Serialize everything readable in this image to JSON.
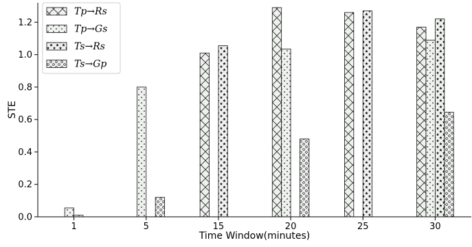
{
  "chart_data": {
    "type": "bar",
    "title": "",
    "xlabel": "Time Window(minutes)",
    "ylabel": "STE",
    "categories": [
      "1",
      "5",
      "15",
      "20",
      "25",
      "30"
    ],
    "ylim": [
      0,
      1.32
    ],
    "yticks": [
      "0.0",
      "0.2",
      "0.4",
      "0.6",
      "0.8",
      "1.0",
      "1.2"
    ],
    "grid": false,
    "legend_position": "top-left",
    "series": [
      {
        "name": "Tp→Rs",
        "pattern": "crosshatch",
        "values": [
          0,
          0,
          1.01,
          1.29,
          1.26,
          1.17
        ]
      },
      {
        "name": "Tp→Gs",
        "pattern": "dots",
        "values": [
          0.055,
          0.8,
          0,
          1.035,
          0,
          1.09
        ]
      },
      {
        "name": "Ts→Rs",
        "pattern": "stars",
        "values": [
          0.01,
          0,
          1.055,
          0,
          1.27,
          1.22
        ]
      },
      {
        "name": "Ts→Gp",
        "pattern": "circles",
        "values": [
          0,
          0.12,
          0,
          0.48,
          0,
          0.645
        ]
      }
    ]
  }
}
